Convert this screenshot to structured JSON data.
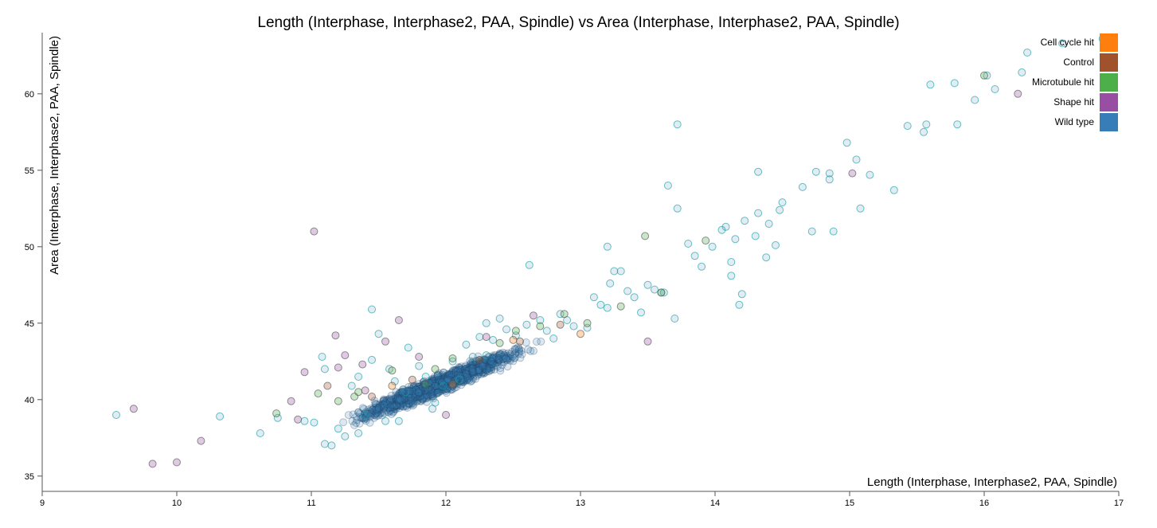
{
  "chart_data": {
    "type": "scatter",
    "title": "Length (Interphase, Interphase2, PAA, Spindle) vs Area (Interphase, Interphase2, PAA, Spindle)",
    "xlabel": "Length (Interphase, Interphase2, PAA, Spindle)",
    "ylabel": "Area (Interphase, Interphase2, PAA, Spindle)",
    "xlim": [
      9,
      17
    ],
    "ylim": [
      34,
      64
    ],
    "xticks": [
      9,
      10,
      11,
      12,
      13,
      14,
      15,
      16,
      17
    ],
    "yticks": [
      35,
      40,
      45,
      50,
      55,
      60
    ],
    "grid": false,
    "legend_position": "top-right",
    "legend": [
      {
        "label": "Cell cycle hit",
        "color": "#ff7f0e"
      },
      {
        "label": "Control",
        "color": "#a0522d"
      },
      {
        "label": "Microtubule hit",
        "color": "#4daf4a"
      },
      {
        "label": "Shape hit",
        "color": "#984ea3"
      },
      {
        "label": "Wild type",
        "color": "#377eb8"
      }
    ],
    "series": [
      {
        "name": "Wild type",
        "color": "#377eb8",
        "points": [
          [
            9.55,
            39.0
          ],
          [
            10.32,
            38.9
          ],
          [
            10.62,
            37.8
          ],
          [
            10.75,
            38.8
          ],
          [
            10.95,
            38.6
          ],
          [
            11.02,
            38.5
          ],
          [
            11.08,
            42.8
          ],
          [
            11.1,
            42.0
          ],
          [
            11.2,
            38.1
          ],
          [
            11.25,
            37.6
          ],
          [
            11.45,
            42.6
          ],
          [
            11.5,
            44.3
          ],
          [
            11.45,
            45.9
          ],
          [
            11.58,
            42.0
          ],
          [
            11.62,
            41.2
          ],
          [
            11.7,
            40.5
          ],
          [
            11.72,
            43.4
          ],
          [
            11.8,
            42.2
          ],
          [
            11.85,
            41.5
          ],
          [
            11.92,
            39.8
          ],
          [
            11.98,
            40.9
          ],
          [
            12.05,
            42.5
          ],
          [
            12.1,
            41.3
          ],
          [
            12.15,
            43.6
          ],
          [
            12.2,
            42.8
          ],
          [
            12.25,
            44.1
          ],
          [
            12.3,
            42.9
          ],
          [
            12.35,
            43.9
          ],
          [
            12.4,
            45.3
          ],
          [
            12.45,
            44.6
          ],
          [
            12.52,
            44.2
          ],
          [
            12.6,
            44.9
          ],
          [
            12.62,
            48.8
          ],
          [
            12.7,
            45.2
          ],
          [
            12.75,
            44.5
          ],
          [
            12.8,
            44.0
          ],
          [
            12.85,
            45.6
          ],
          [
            12.9,
            45.2
          ],
          [
            12.95,
            44.8
          ],
          [
            13.05,
            44.7
          ],
          [
            13.1,
            46.7
          ],
          [
            13.15,
            46.2
          ],
          [
            13.2,
            46.0
          ],
          [
            13.22,
            47.6
          ],
          [
            13.2,
            50.0
          ],
          [
            13.25,
            48.4
          ],
          [
            13.3,
            48.4
          ],
          [
            13.4,
            46.7
          ],
          [
            13.45,
            45.7
          ],
          [
            13.55,
            47.2
          ],
          [
            13.6,
            47.0
          ],
          [
            13.62,
            47.0
          ],
          [
            13.65,
            54.0
          ],
          [
            13.72,
            52.5
          ],
          [
            13.72,
            58.0
          ],
          [
            13.8,
            50.2
          ],
          [
            13.85,
            49.4
          ],
          [
            13.9,
            48.7
          ],
          [
            13.98,
            50.0
          ],
          [
            14.05,
            51.1
          ],
          [
            14.08,
            51.3
          ],
          [
            14.12,
            48.1
          ],
          [
            14.12,
            49.0
          ],
          [
            14.15,
            50.5
          ],
          [
            14.18,
            46.2
          ],
          [
            14.2,
            46.9
          ],
          [
            14.22,
            51.7
          ],
          [
            14.3,
            50.7
          ],
          [
            14.32,
            52.2
          ],
          [
            14.32,
            54.9
          ],
          [
            14.38,
            49.3
          ],
          [
            14.4,
            51.5
          ],
          [
            14.45,
            50.1
          ],
          [
            14.48,
            52.4
          ],
          [
            14.5,
            52.9
          ],
          [
            14.65,
            53.9
          ],
          [
            14.72,
            51.0
          ],
          [
            14.75,
            54.9
          ],
          [
            14.85,
            54.4
          ],
          [
            14.85,
            54.8
          ],
          [
            14.88,
            51.0
          ],
          [
            14.98,
            56.8
          ],
          [
            15.05,
            55.7
          ],
          [
            15.08,
            52.5
          ],
          [
            15.15,
            54.7
          ],
          [
            15.33,
            53.7
          ],
          [
            15.43,
            57.9
          ],
          [
            15.55,
            57.5
          ],
          [
            15.57,
            58.0
          ],
          [
            15.6,
            60.6
          ],
          [
            15.78,
            60.7
          ],
          [
            15.8,
            58.0
          ],
          [
            15.93,
            59.6
          ],
          [
            16.02,
            61.2
          ],
          [
            16.08,
            60.3
          ],
          [
            16.28,
            61.4
          ],
          [
            16.32,
            62.7
          ],
          [
            16.58,
            63.3
          ],
          [
            16.88,
            63.6
          ],
          [
            13.5,
            47.5
          ],
          [
            13.35,
            47.1
          ],
          [
            12.3,
            45.0
          ],
          [
            11.3,
            40.9
          ],
          [
            11.4,
            39.0
          ],
          [
            11.35,
            37.8
          ],
          [
            11.1,
            37.1
          ],
          [
            11.55,
            38.6
          ],
          [
            11.9,
            39.4
          ],
          [
            11.15,
            37.0
          ],
          [
            11.35,
            41.5
          ],
          [
            11.65,
            38.6
          ],
          [
            13.7,
            45.3
          ]
        ]
      },
      {
        "name": "Shape hit",
        "color": "#984ea3",
        "points": [
          [
            9.68,
            39.4
          ],
          [
            9.82,
            35.8
          ],
          [
            10.0,
            35.9
          ],
          [
            10.18,
            37.3
          ],
          [
            10.9,
            38.7
          ],
          [
            11.02,
            51.0
          ],
          [
            10.95,
            41.8
          ],
          [
            11.18,
            44.2
          ],
          [
            11.2,
            42.1
          ],
          [
            11.38,
            42.3
          ],
          [
            11.4,
            40.6
          ],
          [
            11.55,
            43.8
          ],
          [
            11.65,
            45.2
          ],
          [
            12.0,
            39.0
          ],
          [
            12.65,
            45.5
          ],
          [
            13.5,
            43.8
          ],
          [
            15.02,
            54.8
          ],
          [
            10.85,
            39.9
          ],
          [
            11.25,
            42.9
          ],
          [
            11.8,
            42.8
          ],
          [
            12.3,
            44.1
          ],
          [
            16.25,
            60.0
          ]
        ]
      },
      {
        "name": "Microtubule hit",
        "color": "#4daf4a",
        "points": [
          [
            10.74,
            39.1
          ],
          [
            11.05,
            40.4
          ],
          [
            11.32,
            40.2
          ],
          [
            11.35,
            40.5
          ],
          [
            11.92,
            42.0
          ],
          [
            12.52,
            44.5
          ],
          [
            13.48,
            50.7
          ],
          [
            13.6,
            47.0
          ],
          [
            13.93,
            50.4
          ],
          [
            16.0,
            61.2
          ],
          [
            11.6,
            41.9
          ],
          [
            12.05,
            42.7
          ],
          [
            12.4,
            43.7
          ],
          [
            12.88,
            45.6
          ],
          [
            13.3,
            46.1
          ],
          [
            11.2,
            39.9
          ],
          [
            11.85,
            41.0
          ],
          [
            12.7,
            44.8
          ],
          [
            13.05,
            45.0
          ]
        ]
      },
      {
        "name": "Control",
        "color": "#a0522d",
        "points": [
          [
            11.12,
            40.9
          ],
          [
            11.75,
            41.3
          ],
          [
            12.25,
            42.6
          ],
          [
            12.85,
            44.9
          ],
          [
            11.45,
            40.2
          ],
          [
            12.55,
            43.8
          ]
        ]
      },
      {
        "name": "Cell cycle hit",
        "color": "#ff7f0e",
        "points": [
          [
            12.05,
            41.0
          ],
          [
            12.5,
            43.9
          ],
          [
            13.0,
            44.3
          ],
          [
            11.6,
            40.9
          ]
        ]
      }
    ],
    "dense_cluster": {
      "series": "Wild type",
      "center": [
        11.95,
        41.0
      ],
      "slope": 3.6,
      "x_range": [
        11.1,
        12.95
      ],
      "spread": 0.55,
      "count": 1400
    }
  }
}
